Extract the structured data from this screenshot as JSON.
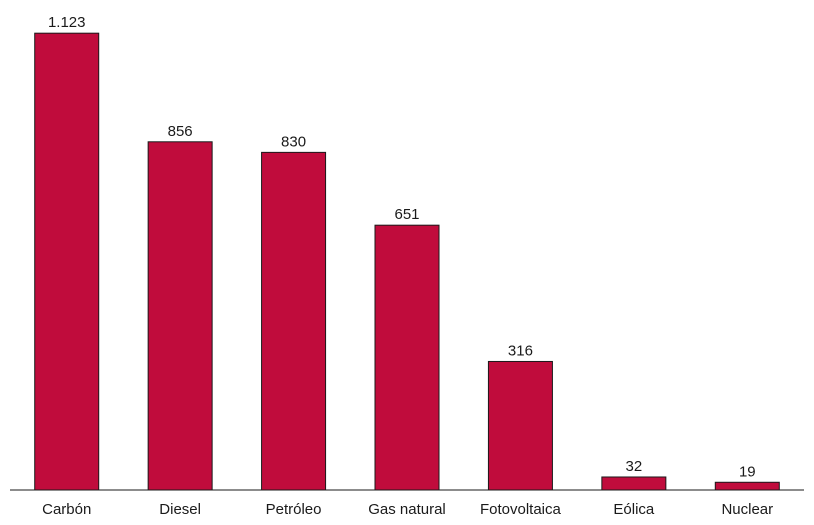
{
  "chart_data": {
    "type": "bar",
    "title": "",
    "xlabel": "",
    "ylabel": "",
    "categories": [
      "Carbón",
      "Diesel",
      "Petróleo",
      "Gas natural",
      "Fotovoltaica",
      "Eólica",
      "Nuclear"
    ],
    "values": [
      1123,
      856,
      830,
      651,
      316,
      32,
      19
    ],
    "value_labels": [
      "1.123",
      "856",
      "830",
      "651",
      "316",
      "32",
      "19"
    ],
    "ylim": [
      0,
      1180
    ],
    "grid": false,
    "legend": "none",
    "colors": {
      "bar": "#C00C3C",
      "bar_stroke": "#1a1a1a",
      "axis": "#1a1a1a",
      "text": "#1a1a1a"
    }
  }
}
